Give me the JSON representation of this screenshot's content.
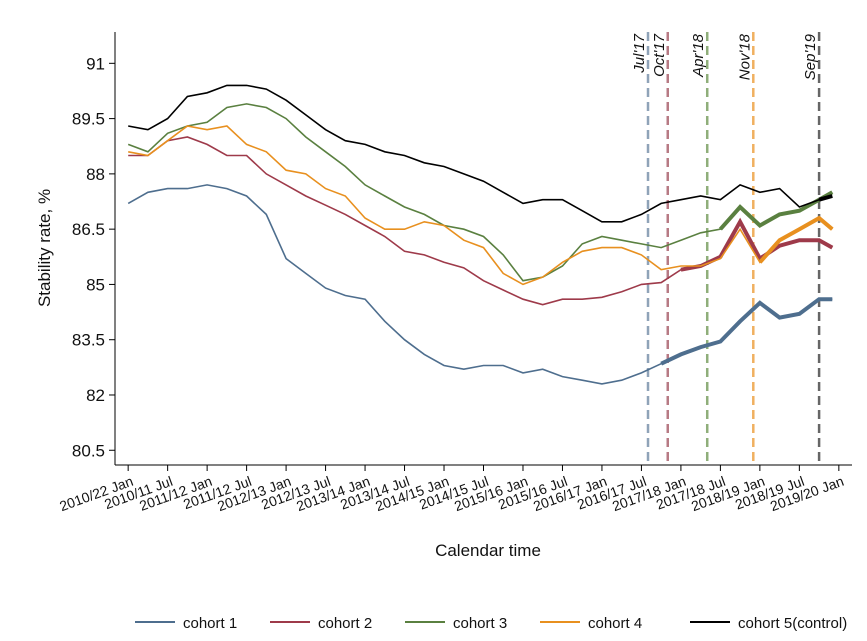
{
  "chart_data": {
    "type": "line",
    "x_label": "Calendar time",
    "y_label": "Stability rate, %",
    "x": [
      0,
      3,
      6,
      9,
      12,
      15,
      18,
      21,
      24,
      27,
      30,
      33,
      36,
      39,
      42,
      45,
      48,
      51,
      54,
      57,
      60,
      63,
      66,
      69,
      72,
      75,
      78,
      81,
      84,
      87,
      90,
      93,
      96,
      99,
      102,
      105,
      107
    ],
    "xlim": [
      -2,
      110
    ],
    "xticks": [
      {
        "value": 0,
        "label": "2010/22 Jan"
      },
      {
        "value": 6,
        "label": "2010/11 Jul"
      },
      {
        "value": 12,
        "label": "2011/12 Jan"
      },
      {
        "value": 18,
        "label": "2011/12 Jul"
      },
      {
        "value": 24,
        "label": "2012/13 Jan"
      },
      {
        "value": 30,
        "label": "2012/13 Jul"
      },
      {
        "value": 36,
        "label": "2013/14 Jan"
      },
      {
        "value": 42,
        "label": "2013/14 Jul"
      },
      {
        "value": 48,
        "label": "2014/15 Jan"
      },
      {
        "value": 54,
        "label": "2014/15 Jul"
      },
      {
        "value": 60,
        "label": "2015/16 Jan"
      },
      {
        "value": 66,
        "label": "2015/16 Jul"
      },
      {
        "value": 72,
        "label": "2016/17 Jan"
      },
      {
        "value": 78,
        "label": "2016/17 Jul"
      },
      {
        "value": 84,
        "label": "2017/18 Jan"
      },
      {
        "value": 90,
        "label": "2017/18 Jul"
      },
      {
        "value": 96,
        "label": "2018/19 Jan"
      },
      {
        "value": 102,
        "label": "2018/19 Jul"
      },
      {
        "value": 108,
        "label": "2019/20 Jan"
      }
    ],
    "ylim": [
      80.1,
      91.85
    ],
    "yticks": [
      {
        "value": 80.5,
        "label": "80.5"
      },
      82,
      {
        "value": 83.5,
        "label": "83.5"
      },
      85,
      {
        "value": 86.5,
        "label": "86.5"
      },
      88,
      {
        "value": 89.5,
        "label": "89.5"
      },
      91
    ],
    "events": [
      {
        "label": "Jul'17",
        "x": 79,
        "color": "#8fa3b8"
      },
      {
        "label": "Oct'17",
        "x": 82,
        "color": "#b77a84"
      },
      {
        "label": "Apr'18",
        "x": 88,
        "color": "#8fae7a"
      },
      {
        "label": "Nov'18",
        "x": 95,
        "color": "#f0b060"
      },
      {
        "label": "Sep'19",
        "x": 105,
        "color": "#666666"
      }
    ],
    "series": [
      {
        "name": "cohort 1",
        "color": "#4e6e8e",
        "values": [
          87.2,
          87.5,
          87.6,
          87.6,
          87.7,
          87.6,
          87.4,
          86.9,
          85.7,
          85.3,
          84.9,
          84.7,
          84.6,
          84.0,
          83.5,
          83.1,
          82.8,
          82.7,
          82.8,
          82.8,
          82.6,
          82.7,
          82.5,
          82.4,
          82.3,
          82.4,
          82.6,
          82.85,
          83.1,
          83.3,
          83.45,
          84.0,
          84.5,
          84.1,
          84.2,
          84.6,
          84.6
        ]
      },
      {
        "name": "cohort 2",
        "color": "#9e3a4a",
        "values": [
          88.5,
          88.5,
          88.9,
          89.0,
          88.8,
          88.5,
          88.5,
          88.0,
          87.7,
          87.4,
          87.15,
          86.9,
          86.6,
          86.3,
          85.9,
          85.8,
          85.6,
          85.45,
          85.1,
          84.85,
          84.6,
          84.45,
          84.6,
          84.6,
          84.65,
          84.8,
          85.0,
          85.05,
          85.4,
          85.5,
          85.75,
          86.7,
          85.7,
          86.05,
          86.2,
          86.2,
          86.0
        ]
      },
      {
        "name": "cohort 3",
        "color": "#5a8040",
        "values": [
          88.8,
          88.6,
          89.1,
          89.3,
          89.4,
          89.8,
          89.9,
          89.8,
          89.5,
          89.0,
          88.6,
          88.2,
          87.7,
          87.4,
          87.1,
          86.9,
          86.6,
          86.5,
          86.3,
          85.8,
          85.1,
          85.2,
          85.5,
          86.1,
          86.3,
          86.2,
          86.1,
          86.0,
          86.2,
          86.4,
          86.5,
          87.1,
          86.6,
          86.9,
          87.0,
          87.3,
          87.5
        ]
      },
      {
        "name": "cohort 4",
        "color": "#e8901f",
        "values": [
          88.6,
          88.5,
          88.9,
          89.3,
          89.2,
          89.3,
          88.8,
          88.6,
          88.1,
          88.0,
          87.6,
          87.4,
          86.8,
          86.5,
          86.5,
          86.7,
          86.6,
          86.2,
          86.0,
          85.3,
          85.0,
          85.2,
          85.6,
          85.9,
          86.0,
          86.0,
          85.8,
          85.4,
          85.5,
          85.5,
          85.7,
          86.5,
          85.6,
          86.2,
          86.5,
          86.8,
          86.5
        ]
      },
      {
        "name": "cohort 5(control)",
        "color": "#000000",
        "values": [
          89.3,
          89.2,
          89.5,
          90.1,
          90.2,
          90.4,
          90.4,
          90.3,
          90.0,
          89.6,
          89.2,
          88.9,
          88.8,
          88.6,
          88.5,
          88.3,
          88.2,
          88.0,
          87.8,
          87.5,
          87.2,
          87.3,
          87.3,
          87.0,
          86.7,
          86.7,
          86.9,
          87.2,
          87.3,
          87.4,
          87.3,
          87.7,
          87.5,
          87.6,
          87.1,
          87.3,
          87.4
        ]
      }
    ]
  }
}
